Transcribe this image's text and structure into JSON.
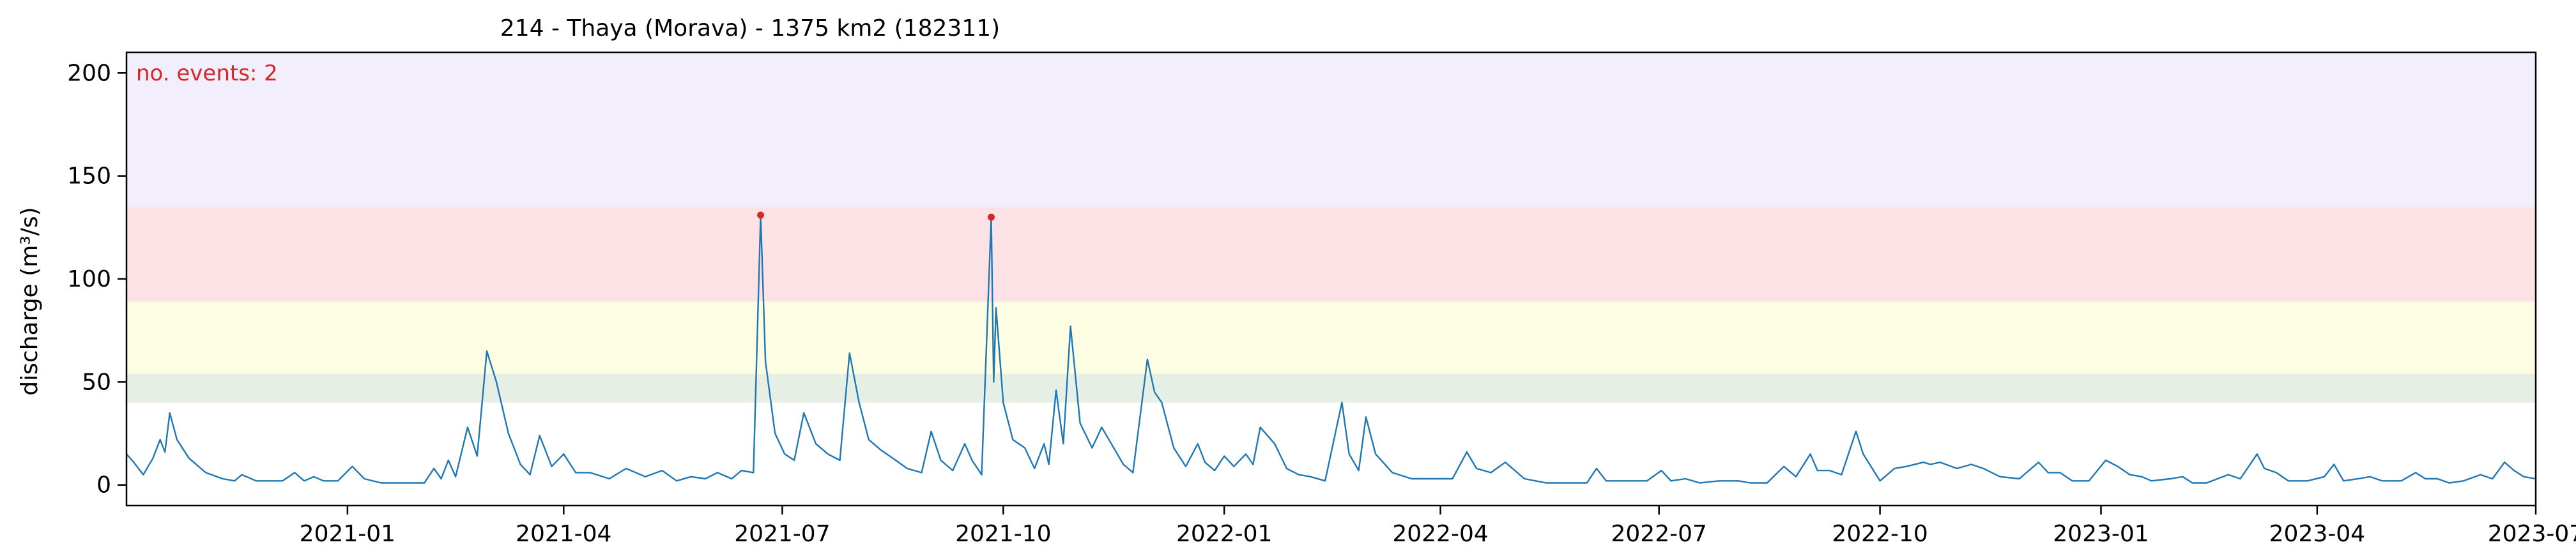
{
  "chart_data": {
    "type": "line",
    "title": "214 - Thaya (Morava) - 1375 km2 (182311)",
    "xlabel": "",
    "ylabel": "discharge (m³/s)",
    "annotation": {
      "text": "no. events: 2",
      "color": "#d62728"
    },
    "xlim": [
      "2020-10-01",
      "2023-07-01"
    ],
    "ylim": [
      -10,
      210
    ],
    "x_tick_labels": [
      "2021-01",
      "2021-04",
      "2021-07",
      "2021-10",
      "2022-01",
      "2022-04",
      "2022-07",
      "2022-10",
      "2023-01",
      "2023-04",
      "2023-07"
    ],
    "y_ticks": [
      0,
      50,
      100,
      150,
      200
    ],
    "grid": false,
    "threshold_bands": [
      {
        "from": 40,
        "to": 54,
        "color": "#e6efe3"
      },
      {
        "from": 54,
        "to": 89,
        "color": "#fdfde3"
      },
      {
        "from": 89,
        "to": 135,
        "color": "#fde2e5"
      },
      {
        "from": 135,
        "to": 210,
        "color": "#f3eefb"
      }
    ],
    "line_color": "#1f77b4",
    "event_marker_color": "#d62728",
    "series": [
      {
        "values": [
          [
            "2020-10-01",
            15
          ],
          [
            "2020-10-04",
            11
          ],
          [
            "2020-10-08",
            5
          ],
          [
            "2020-10-12",
            13
          ],
          [
            "2020-10-15",
            22
          ],
          [
            "2020-10-17",
            16
          ],
          [
            "2020-10-19",
            35
          ],
          [
            "2020-10-22",
            22
          ],
          [
            "2020-10-27",
            13
          ],
          [
            "2020-11-03",
            6
          ],
          [
            "2020-11-10",
            3
          ],
          [
            "2020-11-15",
            2
          ],
          [
            "2020-11-18",
            5
          ],
          [
            "2020-11-24",
            2
          ],
          [
            "2020-12-05",
            2
          ],
          [
            "2020-12-10",
            6
          ],
          [
            "2020-12-14",
            2
          ],
          [
            "2020-12-18",
            4
          ],
          [
            "2020-12-22",
            2
          ],
          [
            "2020-12-28",
            2
          ],
          [
            "2021-01-03",
            9
          ],
          [
            "2021-01-08",
            3
          ],
          [
            "2021-01-15",
            1
          ],
          [
            "2021-01-25",
            1
          ],
          [
            "2021-02-02",
            1
          ],
          [
            "2021-02-06",
            8
          ],
          [
            "2021-02-09",
            3
          ],
          [
            "2021-02-12",
            12
          ],
          [
            "2021-02-15",
            4
          ],
          [
            "2021-02-20",
            28
          ],
          [
            "2021-02-24",
            14
          ],
          [
            "2021-02-28",
            65
          ],
          [
            "2021-03-04",
            50
          ],
          [
            "2021-03-09",
            25
          ],
          [
            "2021-03-14",
            10
          ],
          [
            "2021-03-18",
            5
          ],
          [
            "2021-03-22",
            24
          ],
          [
            "2021-03-27",
            9
          ],
          [
            "2021-04-01",
            15
          ],
          [
            "2021-04-06",
            6
          ],
          [
            "2021-04-12",
            6
          ],
          [
            "2021-04-20",
            3
          ],
          [
            "2021-04-27",
            8
          ],
          [
            "2021-05-05",
            4
          ],
          [
            "2021-05-12",
            7
          ],
          [
            "2021-05-18",
            2
          ],
          [
            "2021-05-24",
            4
          ],
          [
            "2021-05-30",
            3
          ],
          [
            "2021-06-04",
            6
          ],
          [
            "2021-06-10",
            3
          ],
          [
            "2021-06-14",
            7
          ],
          [
            "2021-06-19",
            6
          ],
          [
            "2021-06-22",
            131
          ],
          [
            "2021-06-24",
            60
          ],
          [
            "2021-06-28",
            25
          ],
          [
            "2021-07-02",
            15
          ],
          [
            "2021-07-06",
            12
          ],
          [
            "2021-07-10",
            35
          ],
          [
            "2021-07-15",
            20
          ],
          [
            "2021-07-20",
            15
          ],
          [
            "2021-07-25",
            12
          ],
          [
            "2021-07-29",
            64
          ],
          [
            "2021-08-02",
            40
          ],
          [
            "2021-08-06",
            22
          ],
          [
            "2021-08-11",
            17
          ],
          [
            "2021-08-16",
            13
          ],
          [
            "2021-08-22",
            8
          ],
          [
            "2021-08-28",
            6
          ],
          [
            "2021-09-01",
            26
          ],
          [
            "2021-09-05",
            12
          ],
          [
            "2021-09-10",
            7
          ],
          [
            "2021-09-15",
            20
          ],
          [
            "2021-09-18",
            12
          ],
          [
            "2021-09-22",
            5
          ],
          [
            "2021-09-26",
            130
          ],
          [
            "2021-09-27",
            50
          ],
          [
            "2021-09-28",
            86
          ],
          [
            "2021-10-01",
            40
          ],
          [
            "2021-10-05",
            22
          ],
          [
            "2021-10-10",
            18
          ],
          [
            "2021-10-14",
            8
          ],
          [
            "2021-10-18",
            20
          ],
          [
            "2021-10-20",
            10
          ],
          [
            "2021-10-23",
            46
          ],
          [
            "2021-10-26",
            20
          ],
          [
            "2021-10-29",
            77
          ],
          [
            "2021-11-02",
            30
          ],
          [
            "2021-11-07",
            18
          ],
          [
            "2021-11-11",
            28
          ],
          [
            "2021-11-15",
            20
          ],
          [
            "2021-11-20",
            10
          ],
          [
            "2021-11-24",
            6
          ],
          [
            "2021-11-30",
            61
          ],
          [
            "2021-12-03",
            45
          ],
          [
            "2021-12-06",
            40
          ],
          [
            "2021-12-11",
            18
          ],
          [
            "2021-12-16",
            9
          ],
          [
            "2021-12-21",
            20
          ],
          [
            "2021-12-24",
            11
          ],
          [
            "2021-12-28",
            7
          ],
          [
            "2022-01-01",
            14
          ],
          [
            "2022-01-05",
            9
          ],
          [
            "2022-01-10",
            15
          ],
          [
            "2022-01-13",
            10
          ],
          [
            "2022-01-16",
            28
          ],
          [
            "2022-01-22",
            20
          ],
          [
            "2022-01-27",
            8
          ],
          [
            "2022-02-01",
            5
          ],
          [
            "2022-02-06",
            4
          ],
          [
            "2022-02-12",
            2
          ],
          [
            "2022-02-19",
            40
          ],
          [
            "2022-02-22",
            15
          ],
          [
            "2022-02-26",
            7
          ],
          [
            "2022-03-01",
            33
          ],
          [
            "2022-03-05",
            15
          ],
          [
            "2022-03-12",
            6
          ],
          [
            "2022-03-20",
            3
          ],
          [
            "2022-03-30",
            3
          ],
          [
            "2022-04-06",
            3
          ],
          [
            "2022-04-12",
            16
          ],
          [
            "2022-04-16",
            8
          ],
          [
            "2022-04-22",
            6
          ],
          [
            "2022-04-28",
            11
          ],
          [
            "2022-05-06",
            3
          ],
          [
            "2022-05-15",
            1
          ],
          [
            "2022-05-24",
            1
          ],
          [
            "2022-06-01",
            1
          ],
          [
            "2022-06-05",
            8
          ],
          [
            "2022-06-09",
            2
          ],
          [
            "2022-06-18",
            2
          ],
          [
            "2022-06-26",
            2
          ],
          [
            "2022-07-02",
            7
          ],
          [
            "2022-07-06",
            2
          ],
          [
            "2022-07-12",
            3
          ],
          [
            "2022-07-18",
            1
          ],
          [
            "2022-07-26",
            2
          ],
          [
            "2022-08-03",
            2
          ],
          [
            "2022-08-08",
            1
          ],
          [
            "2022-08-15",
            1
          ],
          [
            "2022-08-22",
            9
          ],
          [
            "2022-08-27",
            4
          ],
          [
            "2022-09-02",
            15
          ],
          [
            "2022-09-05",
            7
          ],
          [
            "2022-09-10",
            7
          ],
          [
            "2022-09-15",
            5
          ],
          [
            "2022-09-21",
            26
          ],
          [
            "2022-09-24",
            15
          ],
          [
            "2022-10-01",
            2
          ],
          [
            "2022-10-07",
            8
          ],
          [
            "2022-10-12",
            9
          ],
          [
            "2022-10-19",
            11
          ],
          [
            "2022-10-22",
            10
          ],
          [
            "2022-10-26",
            11
          ],
          [
            "2022-11-02",
            8
          ],
          [
            "2022-11-08",
            10
          ],
          [
            "2022-11-13",
            8
          ],
          [
            "2022-11-20",
            4
          ],
          [
            "2022-11-28",
            3
          ],
          [
            "2022-12-06",
            11
          ],
          [
            "2022-12-10",
            6
          ],
          [
            "2022-12-15",
            6
          ],
          [
            "2022-12-20",
            2
          ],
          [
            "2022-12-27",
            2
          ],
          [
            "2023-01-03",
            12
          ],
          [
            "2023-01-08",
            9
          ],
          [
            "2023-01-13",
            5
          ],
          [
            "2023-01-18",
            4
          ],
          [
            "2023-01-22",
            2
          ],
          [
            "2023-01-30",
            3
          ],
          [
            "2023-02-04",
            4
          ],
          [
            "2023-02-08",
            1
          ],
          [
            "2023-02-14",
            1
          ],
          [
            "2023-02-23",
            5
          ],
          [
            "2023-02-28",
            3
          ],
          [
            "2023-03-07",
            15
          ],
          [
            "2023-03-10",
            8
          ],
          [
            "2023-03-15",
            6
          ],
          [
            "2023-03-20",
            2
          ],
          [
            "2023-03-28",
            2
          ],
          [
            "2023-04-04",
            4
          ],
          [
            "2023-04-08",
            10
          ],
          [
            "2023-04-12",
            2
          ],
          [
            "2023-04-18",
            3
          ],
          [
            "2023-04-23",
            4
          ],
          [
            "2023-04-28",
            2
          ],
          [
            "2023-05-06",
            2
          ],
          [
            "2023-05-12",
            6
          ],
          [
            "2023-05-16",
            3
          ],
          [
            "2023-05-21",
            3
          ],
          [
            "2023-05-26",
            1
          ],
          [
            "2023-06-01",
            2
          ],
          [
            "2023-06-08",
            5
          ],
          [
            "2023-06-13",
            3
          ],
          [
            "2023-06-18",
            11
          ],
          [
            "2023-06-22",
            7
          ],
          [
            "2023-06-26",
            4
          ],
          [
            "2023-07-01",
            3
          ]
        ]
      }
    ],
    "events": [
      {
        "date": "2021-06-22",
        "value": 131
      },
      {
        "date": "2021-09-26",
        "value": 130
      }
    ]
  }
}
